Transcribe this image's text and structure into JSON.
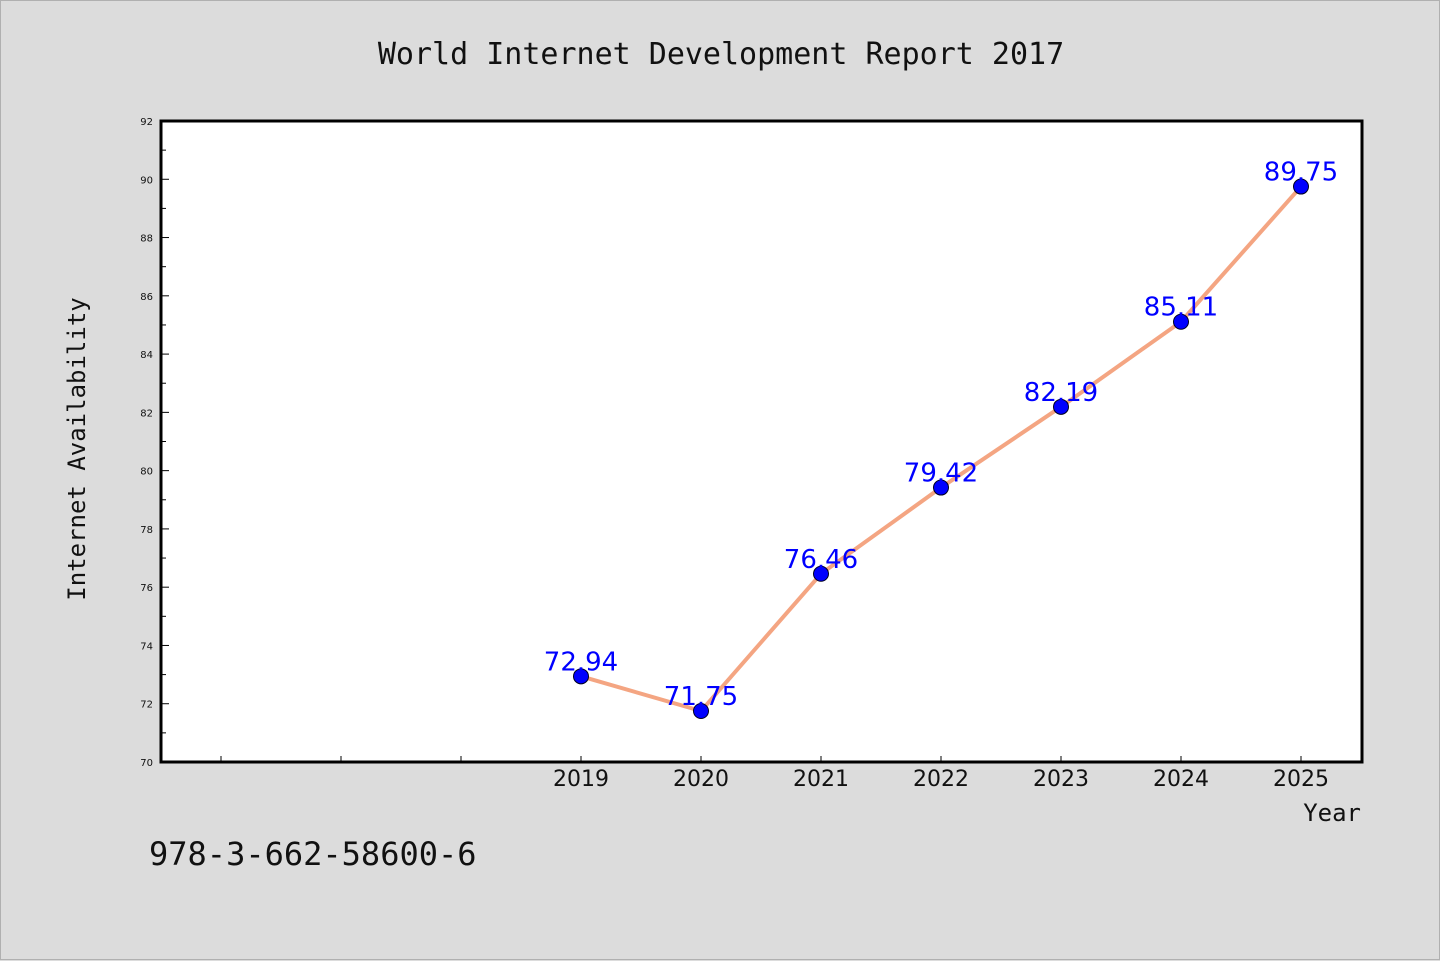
{
  "chart_data": {
    "type": "line",
    "title": "World Internet Development Report 2017",
    "xlabel": "Year",
    "ylabel": "Internet Availability",
    "x": [
      "2019",
      "2020",
      "2021",
      "2022",
      "2023",
      "2024",
      "2025"
    ],
    "series": [
      {
        "values": [
          72.94,
          71.75,
          76.46,
          79.42,
          82.19,
          85.11,
          89.75
        ],
        "data_labels": [
          "72.94",
          "71.75",
          "76.46",
          "79.42",
          "82.19",
          "85.11",
          "89.75"
        ]
      }
    ],
    "ylim": [
      70,
      92
    ],
    "yticks": [
      "70",
      "72",
      "74",
      "76",
      "78",
      "80",
      "82",
      "84",
      "86",
      "88",
      "90",
      "92"
    ],
    "grid": false,
    "colors": {
      "line": "#f4a582",
      "marker": "#0000ff",
      "data_label": "#0000ff",
      "background": "#dcdcdc",
      "plot_area": "#ffffff"
    }
  },
  "footer": {
    "isbn": "978-3-662-58600-6"
  }
}
